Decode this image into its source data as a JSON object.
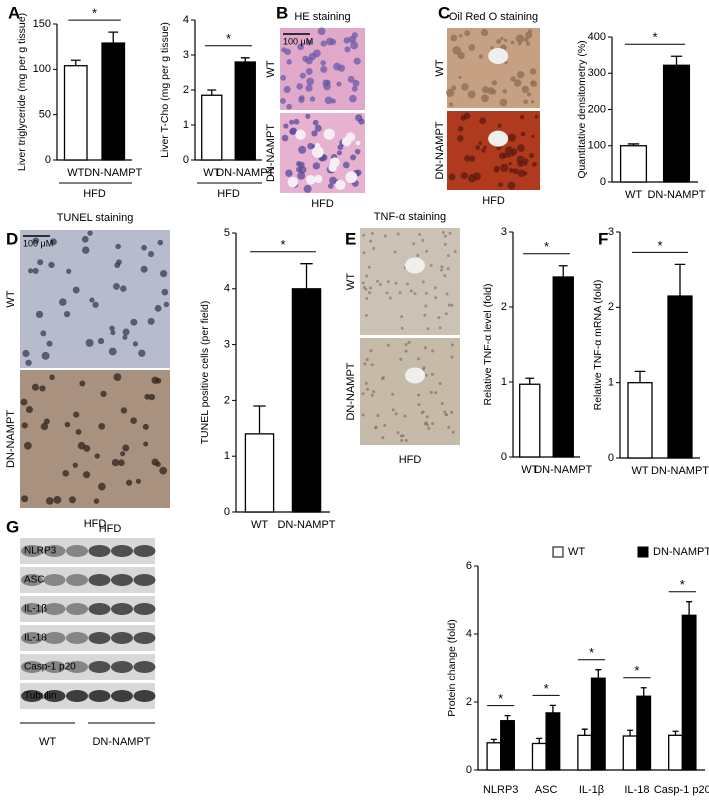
{
  "panel_letters": [
    "A",
    "B",
    "C",
    "D",
    "E",
    "F",
    "G"
  ],
  "chart_data": [
    {
      "type": "bar",
      "categories": [
        "WT",
        "DN-NAMPT"
      ],
      "values": [
        104,
        129
      ],
      "errors": [
        6,
        12
      ],
      "colors": [
        "#ffffff",
        "#000000"
      ],
      "ylabel": "Liver triglyceride (mg per g tissue)",
      "ylim": [
        0,
        150
      ],
      "yticks": [
        0,
        50,
        100,
        150
      ],
      "annotation": "*",
      "group_label": "HFD"
    },
    {
      "type": "bar",
      "categories": [
        "WT",
        "DN-NAMPT"
      ],
      "values": [
        1.85,
        2.8
      ],
      "errors": [
        0.15,
        0.12
      ],
      "colors": [
        "#ffffff",
        "#000000"
      ],
      "ylabel": "Liver T-Cho (mg per g tissue)",
      "ylim": [
        0,
        4
      ],
      "yticks": [
        0,
        1,
        2,
        3,
        4
      ],
      "annotation": "*",
      "group_label": "HFD"
    },
    {
      "type": "bar",
      "categories": [
        "WT",
        "DN-NAMPT"
      ],
      "values": [
        100,
        322
      ],
      "errors": [
        5,
        25
      ],
      "colors": [
        "#ffffff",
        "#000000"
      ],
      "ylabel": "Quantitative densitometry (%)",
      "ylim": [
        0,
        400
      ],
      "yticks": [
        0,
        100,
        200,
        300,
        400
      ],
      "annotation": "*"
    },
    {
      "type": "bar",
      "categories": [
        "WT",
        "DN-NAMPT"
      ],
      "values": [
        1.4,
        4.0
      ],
      "errors": [
        0.5,
        0.45
      ],
      "colors": [
        "#ffffff",
        "#000000"
      ],
      "ylabel": "TUNEL positive cells (per field)",
      "ylim": [
        0,
        5
      ],
      "yticks": [
        0,
        1,
        2,
        3,
        4,
        5
      ],
      "annotation": "*"
    },
    {
      "type": "bar",
      "categories": [
        "WT",
        "DN-NAMPT"
      ],
      "values": [
        0.97,
        2.4
      ],
      "errors": [
        0.08,
        0.15
      ],
      "colors": [
        "#ffffff",
        "#000000"
      ],
      "ylabel": "Relative TNF-α level (fold)",
      "ylim": [
        0,
        3
      ],
      "yticks": [
        0,
        1,
        2,
        3
      ],
      "annotation": "*"
    },
    {
      "type": "bar",
      "categories": [
        "WT",
        "DN-NAMPT"
      ],
      "values": [
        1.0,
        2.15
      ],
      "errors": [
        0.15,
        0.42
      ],
      "colors": [
        "#ffffff",
        "#000000"
      ],
      "ylabel": "Relative TNF-α mRNA (fold)",
      "ylim": [
        0,
        3
      ],
      "yticks": [
        0,
        1,
        2,
        3
      ],
      "annotation": "*"
    },
    {
      "type": "grouped-bar",
      "categories": [
        "NLRP3",
        "ASC",
        "IL-1β",
        "IL-18",
        "Casp-1 p20"
      ],
      "series": [
        {
          "name": "WT",
          "color": "#ffffff",
          "values": [
            0.8,
            0.78,
            1.02,
            1.0,
            1.02
          ],
          "errors": [
            0.1,
            0.15,
            0.18,
            0.17,
            0.12
          ]
        },
        {
          "name": "DN-NAMPT",
          "color": "#000000",
          "values": [
            1.45,
            1.68,
            2.7,
            2.17,
            4.55
          ],
          "errors": [
            0.15,
            0.22,
            0.25,
            0.25,
            0.4
          ]
        }
      ],
      "ylabel": "Protein change (fold)",
      "ylim": [
        0,
        6
      ],
      "yticks": [
        0,
        2,
        4,
        6
      ],
      "annotations": [
        "*",
        "*",
        "*",
        "*",
        "*"
      ],
      "legend": "top"
    }
  ],
  "micrographs": [
    {
      "title": "HE staining",
      "rows": [
        "WT",
        "DN-NAMPT"
      ],
      "caption": "HFD",
      "scale": "100 μM"
    },
    {
      "title": "Oil Red O staining",
      "rows": [
        "WT",
        "DN-NAMPT"
      ],
      "caption": "HFD"
    },
    {
      "title": "TUNEL staining",
      "rows": [
        "WT",
        "DN-NAMPT"
      ],
      "caption": "HFD",
      "scale": "100 μM"
    },
    {
      "title": "TNF-α staining",
      "rows": [
        "WT",
        "DN-NAMPT"
      ],
      "caption": "HFD"
    }
  ],
  "blot": {
    "title": "HFD",
    "rows": [
      "NLRP3",
      "ASC",
      "IL-1β",
      "IL-18",
      "Casp-1 p20",
      "Tubulin"
    ],
    "groups": [
      "WT",
      "DN-NAMPT"
    ]
  }
}
